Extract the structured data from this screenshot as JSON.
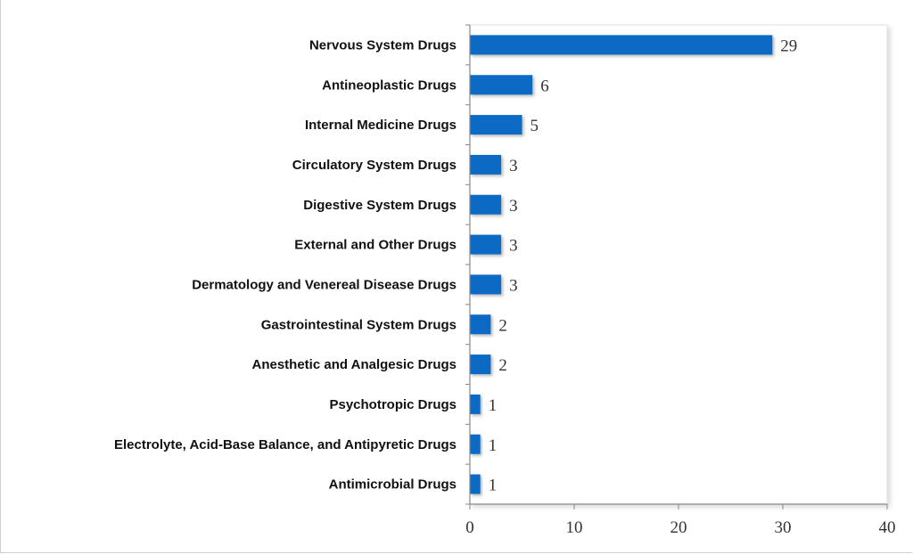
{
  "chart_data": {
    "type": "bar",
    "orientation": "horizontal",
    "categories": [
      "Nervous System Drugs",
      "Antineoplastic Drugs",
      "Internal Medicine Drugs",
      "Circulatory System Drugs",
      "Digestive System Drugs",
      "External and Other Drugs",
      "Dermatology and Venereal Disease Drugs",
      "Gastrointestinal System Drugs",
      "Anesthetic and Analgesic Drugs",
      "Psychotropic Drugs",
      "Electrolyte, Acid-Base Balance, and Antipyretic Drugs",
      "Antimicrobial Drugs"
    ],
    "values": [
      29,
      6,
      5,
      3,
      3,
      3,
      3,
      2,
      2,
      1,
      1,
      1
    ],
    "value_labels": [
      "29",
      "6",
      "5",
      "3",
      "3",
      "3",
      "3",
      "2",
      "2",
      "1",
      "1",
      "1"
    ],
    "xlim": [
      0,
      40
    ],
    "xticks": [
      0,
      10,
      20,
      30,
      40
    ],
    "xtick_labels": [
      "0",
      "10",
      "20",
      "30",
      "40"
    ],
    "grid": false,
    "legend": "none",
    "bar_color": "#0a6ac4",
    "title": "",
    "xlabel": "",
    "ylabel": ""
  }
}
